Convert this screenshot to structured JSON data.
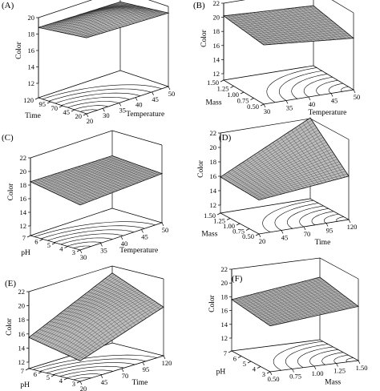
{
  "chart_data": [
    {
      "type": "surface3d",
      "panel_label": "(A)",
      "zlabel": "Color",
      "z_ticks": [
        "12",
        "14",
        "16",
        "18",
        "20"
      ],
      "zlim": [
        12,
        20
      ],
      "xlabel": "Temperature",
      "x_ticks": [
        "20",
        "30",
        "35",
        "40",
        "45",
        "50"
      ],
      "ylabel": "Time",
      "y_ticks": [
        "120",
        "95",
        "70",
        "45",
        "20"
      ],
      "surface": {
        "z_front_left": 19.5,
        "z_back_left": 18.8,
        "z_front_right": 19.2,
        "z_back_right": 18.6,
        "curvature": "dome"
      }
    },
    {
      "type": "surface3d",
      "panel_label": "(B)",
      "zlabel": "Color",
      "z_ticks": [
        "12",
        "14",
        "16",
        "18",
        "20",
        "22"
      ],
      "zlim": [
        12,
        22
      ],
      "xlabel": "Temperature",
      "x_ticks": [
        "30",
        "35",
        "40",
        "45",
        "50"
      ],
      "ylabel": "Mass",
      "y_ticks": [
        "1.50",
        "1.25",
        "1.00",
        "0.75",
        "0.50"
      ],
      "surface": {
        "z_front_left": 19.5,
        "z_back_left": 20.2,
        "z_front_right": 18.4,
        "z_back_right": 19.6,
        "curvature": "flat"
      }
    },
    {
      "type": "surface3d",
      "panel_label": "(C)",
      "zlabel": "Color",
      "z_ticks": [
        "12",
        "14",
        "16",
        "18",
        "20",
        "22"
      ],
      "zlim": [
        12,
        22
      ],
      "xlabel": "Temperature",
      "x_ticks": [
        "30",
        "35",
        "40",
        "45",
        "50"
      ],
      "ylabel": "pH",
      "y_ticks": [
        "7",
        "6",
        "5",
        "4",
        "3"
      ],
      "surface": {
        "z_front_left": 17.2,
        "z_back_left": 18.5,
        "z_front_right": 17.8,
        "z_back_right": 18.3,
        "curvature": "flat"
      }
    },
    {
      "type": "surface3d",
      "panel_label": "(D)",
      "zlabel": "Color",
      "z_ticks": [
        "12",
        "14",
        "16",
        "18",
        "20",
        "22"
      ],
      "zlim": [
        12,
        22
      ],
      "xlabel": "Time",
      "x_ticks": [
        "20",
        "45",
        "70",
        "95",
        "120"
      ],
      "ylabel": "Mass",
      "y_ticks": [
        "1.50",
        "1.25",
        "1.00",
        "0.75",
        "0.50"
      ],
      "surface": {
        "z_front_left": 15.0,
        "z_back_left": 16.5,
        "z_front_right": 17.5,
        "z_back_right": 21.5,
        "curvature": "saddle"
      }
    },
    {
      "type": "surface3d",
      "panel_label": "(E)",
      "zlabel": "Color",
      "z_ticks": [
        "12",
        "14",
        "16",
        "18",
        "20",
        "22"
      ],
      "zlim": [
        12,
        22
      ],
      "xlabel": "Time",
      "x_ticks": [
        "20",
        "45",
        "70",
        "95",
        "120"
      ],
      "ylabel": "pH",
      "y_ticks": [
        "7",
        "6",
        "5",
        "4",
        "3"
      ],
      "surface": {
        "z_front_left": 14.0,
        "z_back_left": 15.5,
        "z_front_right": 18.0,
        "z_back_right": 21.0,
        "curvature": "dome"
      }
    },
    {
      "type": "surface3d",
      "panel_label": "(F)",
      "zlabel": "Color",
      "z_ticks": [
        "12",
        "14",
        "16",
        "18",
        "20",
        "22"
      ],
      "zlim": [
        12,
        22
      ],
      "xlabel": "Mass",
      "x_ticks": [
        "0.50",
        "0.75",
        "1.00",
        "1.25",
        "1.50"
      ],
      "ylabel": "pH",
      "y_ticks": [
        "7",
        "6",
        "5",
        "4",
        "3"
      ],
      "surface": {
        "z_front_left": 16.8,
        "z_back_left": 17.6,
        "z_front_right": 18.0,
        "z_back_right": 19.2,
        "curvature": "flat"
      }
    }
  ]
}
